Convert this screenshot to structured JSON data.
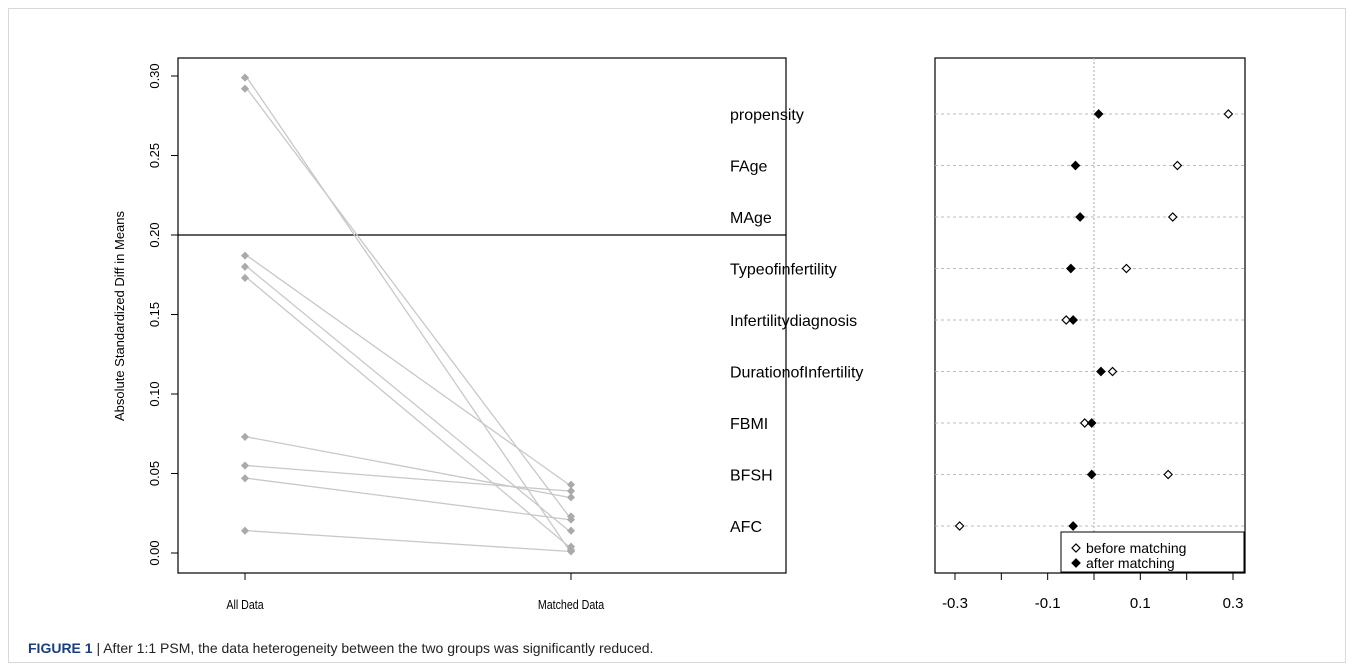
{
  "colors": {
    "line": "#c8c8c8",
    "point": "#aaaaaa",
    "axis": "#000000",
    "grid": "#bbbbbb",
    "ref_line": "#aaaaaa"
  },
  "chart_data": [
    {
      "type": "line",
      "ylabel": "Absolute Standardized Diff in Means",
      "categories": [
        "All Data",
        "Matched Data"
      ],
      "ylim": [
        0,
        0.3
      ],
      "yticks": [
        "0.00",
        "0.05",
        "0.10",
        "0.15",
        "0.20",
        "0.25",
        "0.30"
      ],
      "threshold": 0.2,
      "series": [
        {
          "values": [
            0.299,
            0.002
          ]
        },
        {
          "values": [
            0.292,
            0.023
          ]
        },
        {
          "values": [
            0.187,
            0.043
          ]
        },
        {
          "values": [
            0.18,
            0.014
          ]
        },
        {
          "values": [
            0.173,
            0.004
          ]
        },
        {
          "values": [
            0.073,
            0.035
          ]
        },
        {
          "values": [
            0.055,
            0.039
          ]
        },
        {
          "values": [
            0.047,
            0.021
          ]
        },
        {
          "values": [
            0.014,
            0.001
          ]
        }
      ]
    },
    {
      "type": "scatter",
      "categories": [
        "propensity",
        "FAge",
        "MAge",
        "Typeofinfertility",
        "Infertilitydiagnosis",
        "DurationofInfertility",
        "FBMI",
        "BFSH",
        "AFC"
      ],
      "xlim": [
        -0.3,
        0.3
      ],
      "xticks": [
        "-0.3",
        "-0.1",
        "0.1",
        "0.3"
      ],
      "series": [
        {
          "name": "before matching",
          "values": [
            0.29,
            0.18,
            0.17,
            0.07,
            -0.06,
            0.04,
            -0.02,
            0.16,
            -0.29
          ]
        },
        {
          "name": "after matching",
          "values": [
            0.01,
            -0.04,
            -0.03,
            -0.05,
            -0.045,
            0.015,
            -0.005,
            -0.005,
            -0.045
          ]
        }
      ],
      "legend": "bottom-right"
    }
  ],
  "caption": {
    "label": "FIGURE 1",
    "text": " | After 1:1 PSM, the data heterogeneity between the two groups was significantly reduced."
  }
}
